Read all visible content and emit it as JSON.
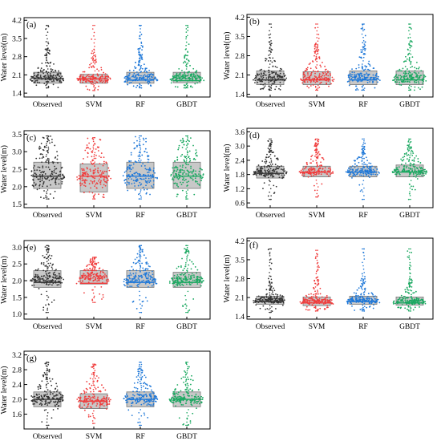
{
  "chart_data": [
    {
      "panel_label": "(a)",
      "type": "box-swarm",
      "ylabel": "Water level(m)",
      "yticks": [
        1.4,
        2.1,
        2.8,
        3.5,
        4.2
      ],
      "ylim": [
        1.25,
        4.3
      ],
      "categories": [
        "Observed",
        "SVM",
        "RF",
        "GBDT"
      ],
      "boxes": [
        {
          "name": "Observed",
          "min": 1.6,
          "q1": 1.78,
          "median": 1.95,
          "q3": 2.2,
          "max": 4.0
        },
        {
          "name": "SVM",
          "min": 1.5,
          "q1": 1.78,
          "median": 1.95,
          "q3": 2.12,
          "max": 4.0
        },
        {
          "name": "RF",
          "min": 1.6,
          "q1": 1.78,
          "median": 1.9,
          "q3": 2.2,
          "max": 4.0
        },
        {
          "name": "GBDT",
          "min": 1.6,
          "q1": 1.8,
          "median": 1.88,
          "q3": 2.2,
          "max": 4.0
        }
      ]
    },
    {
      "panel_label": "(b)",
      "type": "box-swarm",
      "ylabel": "Water level(m)",
      "yticks": [
        1.4,
        2.1,
        2.8,
        3.5,
        4.2
      ],
      "ylim": [
        1.3,
        4.3
      ],
      "categories": [
        "Observed",
        "SVM",
        "RF",
        "GBDT"
      ],
      "boxes": [
        {
          "name": "Observed",
          "min": 1.55,
          "q1": 1.75,
          "median": 1.92,
          "q3": 2.25,
          "max": 3.95
        },
        {
          "name": "SVM",
          "min": 1.55,
          "q1": 1.75,
          "median": 1.92,
          "q3": 2.22,
          "max": 3.95
        },
        {
          "name": "RF",
          "min": 1.55,
          "q1": 1.75,
          "median": 1.92,
          "q3": 2.25,
          "max": 3.95
        },
        {
          "name": "GBDT",
          "min": 1.55,
          "q1": 1.75,
          "median": 1.92,
          "q3": 2.25,
          "max": 3.95
        }
      ]
    },
    {
      "panel_label": "(c)",
      "type": "box-swarm",
      "ylabel": "Water level(m)",
      "yticks": [
        1.5,
        2.0,
        2.5,
        3.0,
        3.5
      ],
      "ylim": [
        1.4,
        3.6
      ],
      "categories": [
        "Observed",
        "SVM",
        "RF",
        "GBDT"
      ],
      "boxes": [
        {
          "name": "Observed",
          "min": 1.65,
          "q1": 1.95,
          "median": 2.3,
          "q3": 2.7,
          "max": 3.45
        },
        {
          "name": "SVM",
          "min": 1.65,
          "q1": 1.85,
          "median": 2.3,
          "q3": 2.65,
          "max": 3.4
        },
        {
          "name": "RF",
          "min": 1.65,
          "q1": 1.95,
          "median": 2.3,
          "q3": 2.7,
          "max": 3.45
        },
        {
          "name": "GBDT",
          "min": 1.65,
          "q1": 1.95,
          "median": 2.3,
          "q3": 2.7,
          "max": 3.45
        }
      ]
    },
    {
      "panel_label": "(d)",
      "type": "box-swarm",
      "ylabel": "Water level(m)",
      "yticks": [
        0.6,
        1.2,
        1.8,
        2.4,
        3.0,
        3.6
      ],
      "ylim": [
        0.4,
        3.75
      ],
      "categories": [
        "Observed",
        "SVM",
        "RF",
        "GBDT"
      ],
      "boxes": [
        {
          "name": "Observed",
          "min": 0.75,
          "q1": 1.65,
          "median": 1.85,
          "q3": 2.15,
          "max": 3.3
        },
        {
          "name": "SVM",
          "min": 0.85,
          "q1": 1.7,
          "median": 1.9,
          "q3": 2.15,
          "max": 3.3
        },
        {
          "name": "RF",
          "min": 0.75,
          "q1": 1.7,
          "median": 1.9,
          "q3": 2.15,
          "max": 3.3
        },
        {
          "name": "GBDT",
          "min": 0.75,
          "q1": 1.7,
          "median": 1.9,
          "q3": 2.2,
          "max": 3.3
        }
      ]
    },
    {
      "panel_label": "(e)",
      "type": "box-swarm",
      "ylabel": "Water level(m)",
      "yticks": [
        1.0,
        1.5,
        2.0,
        2.5,
        3.0
      ],
      "ylim": [
        0.85,
        3.2
      ],
      "categories": [
        "Observed",
        "SVM",
        "RF",
        "GBDT"
      ],
      "boxes": [
        {
          "name": "Observed",
          "min": 1.05,
          "q1": 1.8,
          "median": 1.95,
          "q3": 2.3,
          "max": 3.05
        },
        {
          "name": "SVM",
          "min": 1.35,
          "q1": 1.9,
          "median": 1.92,
          "q3": 2.3,
          "max": 2.7
        },
        {
          "name": "RF",
          "min": 1.05,
          "q1": 1.8,
          "median": 1.95,
          "q3": 2.3,
          "max": 3.05
        },
        {
          "name": "GBDT",
          "min": 1.05,
          "q1": 1.8,
          "median": 1.95,
          "q3": 2.25,
          "max": 3.05
        }
      ]
    },
    {
      "panel_label": "(f)",
      "type": "box-swarm",
      "ylabel": "Water level(m)",
      "yticks": [
        1.4,
        2.1,
        2.8,
        3.5,
        4.2
      ],
      "ylim": [
        1.3,
        4.3
      ],
      "categories": [
        "Observed",
        "SVM",
        "RF",
        "GBDT"
      ],
      "boxes": [
        {
          "name": "Observed",
          "min": 1.55,
          "q1": 1.85,
          "median": 1.95,
          "q3": 2.15,
          "max": 3.9
        },
        {
          "name": "SVM",
          "min": 1.6,
          "q1": 1.8,
          "median": 1.9,
          "q3": 2.12,
          "max": 3.85
        },
        {
          "name": "RF",
          "min": 1.6,
          "q1": 1.85,
          "median": 1.95,
          "q3": 2.15,
          "max": 3.9
        },
        {
          "name": "GBDT",
          "min": 1.6,
          "q1": 1.82,
          "median": 1.9,
          "q3": 2.12,
          "max": 3.9
        }
      ]
    },
    {
      "panel_label": "(g)",
      "type": "box-swarm",
      "ylabel": "Water level(m)",
      "yticks": [
        1.6,
        2.0,
        2.4,
        2.8,
        3.2
      ],
      "ylim": [
        1.2,
        3.3
      ],
      "categories": [
        "Observed",
        "SVM",
        "RF",
        "GBDT"
      ],
      "boxes": [
        {
          "name": "Observed",
          "min": 1.3,
          "q1": 1.8,
          "median": 2.0,
          "q3": 2.2,
          "max": 3.0
        },
        {
          "name": "SVM",
          "min": 1.35,
          "q1": 1.75,
          "median": 1.95,
          "q3": 2.15,
          "max": 2.95
        },
        {
          "name": "RF",
          "min": 1.3,
          "q1": 1.8,
          "median": 2.0,
          "q3": 2.2,
          "max": 3.0
        },
        {
          "name": "GBDT",
          "min": 1.3,
          "q1": 1.8,
          "median": 2.0,
          "q3": 2.2,
          "max": 3.0
        }
      ]
    }
  ],
  "colors": {
    "Observed": "#333333",
    "SVM": "#f03c3c",
    "RF": "#1f78d8",
    "GBDT": "#1aa860",
    "box_fill": "#c8c8c8",
    "box_stroke": "#777777"
  }
}
